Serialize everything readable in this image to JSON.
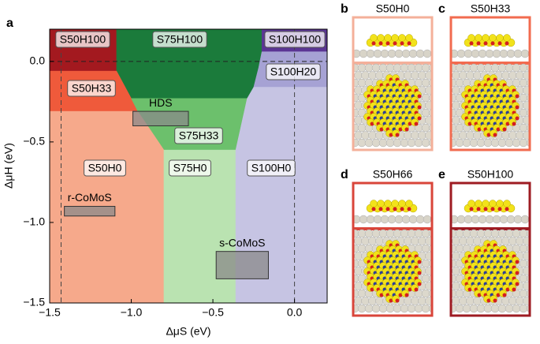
{
  "chart_data": {
    "type": "phase-diagram",
    "panel_label": "a",
    "xlabel": "ΔμS (eV)",
    "ylabel": "ΔμH (eV)",
    "xlim": [
      -1.5,
      0.2
    ],
    "ylim": [
      -1.5,
      0.2
    ],
    "xticks": [
      {
        "value": -1.5,
        "label": "−1.5"
      },
      {
        "value": -1.0,
        "label": "−1.0"
      },
      {
        "value": -0.5,
        "label": "−0.5"
      },
      {
        "value": 0,
        "label": "0.0"
      }
    ],
    "yticks": [
      {
        "value": -1.5,
        "label": "−1.5"
      },
      {
        "value": -1.0,
        "label": "−1.0"
      },
      {
        "value": -0.5,
        "label": "−0.5"
      },
      {
        "value": 0,
        "label": "0.0"
      }
    ],
    "regions": [
      {
        "name": "S50H100",
        "color": "#a3191f",
        "x": [
          -1.5,
          -1.09,
          -1.09,
          -1.5
        ],
        "y": [
          0.2,
          0.2,
          -0.06,
          -0.06
        ]
      },
      {
        "name": "S75H100",
        "color": "#1b7b3b",
        "x": [
          -1.09,
          -0.2,
          -0.2,
          -0.22,
          -0.25,
          -0.29,
          -1.0,
          -1.09
        ],
        "y": [
          0.2,
          0.2,
          0.06,
          -0.04,
          -0.16,
          -0.23,
          -0.23,
          -0.06
        ]
      },
      {
        "name": "S100H100",
        "color": "#5b3594",
        "x": [
          -0.2,
          0.2,
          0.2,
          -0.2
        ],
        "y": [
          0.2,
          0.2,
          0.06,
          0.06
        ]
      },
      {
        "name": "S100H20",
        "color": "#a6a2d4",
        "x": [
          -0.2,
          0.2,
          0.2,
          -0.25,
          -0.22
        ],
        "y": [
          0.06,
          0.06,
          -0.16,
          -0.16,
          -0.04
        ]
      },
      {
        "name": "S50H33",
        "color": "#ef5a3b",
        "x": [
          -1.5,
          -1.09,
          -1.0,
          -0.96,
          -1.5
        ],
        "y": [
          -0.06,
          -0.06,
          -0.23,
          -0.31,
          -0.31
        ]
      },
      {
        "name": "S75H33",
        "color": "#6cc06c",
        "x": [
          -1.0,
          -0.29,
          -0.36,
          -0.8,
          -0.96
        ],
        "y": [
          -0.23,
          -0.23,
          -0.55,
          -0.55,
          -0.31
        ]
      },
      {
        "name": "S50H0",
        "color": "#f6a98b",
        "x": [
          -1.5,
          -0.96,
          -0.8,
          -0.8,
          -1.5
        ],
        "y": [
          -0.31,
          -0.31,
          -0.55,
          -1.5,
          -1.5
        ]
      },
      {
        "name": "S75H0",
        "color": "#bae3b1",
        "x": [
          -0.8,
          -0.36,
          -0.36,
          -0.8
        ],
        "y": [
          -0.55,
          -0.55,
          -1.5,
          -1.5
        ]
      },
      {
        "name": "S100H0",
        "color": "#c6c4e3",
        "x": [
          -0.36,
          -0.29,
          -0.25,
          0.2,
          0.2,
          -0.36
        ],
        "y": [
          -0.55,
          -0.23,
          -0.16,
          -0.16,
          -1.5,
          -1.5
        ]
      }
    ],
    "reference_lines": {
      "x": [
        -1.43,
        0
      ],
      "y": [
        0
      ]
    },
    "boxes": [
      {
        "name": "HDS",
        "x": [
          -0.99,
          -0.65
        ],
        "y": [
          -0.31,
          -0.4
        ]
      },
      {
        "name": "r-CoMoS",
        "x": [
          -1.41,
          -1.1
        ],
        "y": [
          -0.9,
          -0.96
        ]
      },
      {
        "name": "s-CoMoS",
        "x": [
          -0.48,
          -0.16
        ],
        "y": [
          -1.18,
          -1.35
        ]
      }
    ]
  },
  "structures": [
    {
      "label": "b",
      "title": "S50H0",
      "color": "#f4b09a"
    },
    {
      "label": "c",
      "title": "S50H33",
      "color": "#f26b4f"
    },
    {
      "label": "d",
      "title": "S50H66",
      "color": "#d9453a"
    },
    {
      "label": "e",
      "title": "S50H100",
      "color": "#9e1b22"
    }
  ]
}
